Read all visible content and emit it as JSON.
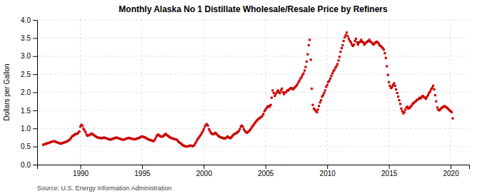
{
  "chart_data": {
    "type": "scatter",
    "title": "Monthly Alaska No 1 Distillate Wholesale/Resale Price by Refiners",
    "ylabel": "Dollars per Gallon",
    "source": "Source: U.S. Energy Information Administration",
    "color": "#cc0000",
    "marker": "square",
    "grid": true,
    "xlim": [
      1986.5,
      2021.5
    ],
    "xticks": [
      1990,
      1995,
      2000,
      2005,
      2010,
      2015,
      2020
    ],
    "ylim": [
      0.0,
      4.0
    ],
    "yticks": [
      {
        "value": 0.0,
        "label": "0.0"
      },
      0.5,
      {
        "value": 1.0,
        "label": "1.0"
      },
      1.5,
      {
        "value": 2.0,
        "label": "2.0"
      },
      2.5,
      {
        "value": 3.0,
        "label": "3.0"
      },
      3.5,
      {
        "value": 4.0,
        "label": "4.0"
      }
    ],
    "x": [
      1987.0,
      1987.08,
      1987.17,
      1987.25,
      1987.33,
      1987.42,
      1987.5,
      1987.58,
      1987.67,
      1987.75,
      1987.83,
      1987.92,
      1988.0,
      1988.08,
      1988.17,
      1988.25,
      1988.33,
      1988.42,
      1988.5,
      1988.58,
      1988.67,
      1988.75,
      1988.83,
      1988.92,
      1989.0,
      1989.08,
      1989.17,
      1989.25,
      1989.33,
      1989.42,
      1989.5,
      1989.58,
      1989.67,
      1989.75,
      1989.83,
      1989.92,
      1990.0,
      1990.08,
      1990.17,
      1990.25,
      1990.33,
      1990.42,
      1990.5,
      1990.58,
      1990.67,
      1990.75,
      1990.83,
      1990.92,
      1991.0,
      1991.08,
      1991.17,
      1991.25,
      1991.33,
      1991.42,
      1991.5,
      1991.58,
      1991.67,
      1991.75,
      1991.83,
      1991.92,
      1992.0,
      1992.08,
      1992.17,
      1992.25,
      1992.33,
      1992.42,
      1992.5,
      1992.58,
      1992.67,
      1992.75,
      1992.83,
      1992.92,
      1993.0,
      1993.08,
      1993.17,
      1993.25,
      1993.33,
      1993.42,
      1993.5,
      1993.58,
      1993.67,
      1993.75,
      1993.83,
      1993.92,
      1994.0,
      1994.08,
      1994.17,
      1994.25,
      1994.33,
      1994.42,
      1994.5,
      1994.58,
      1994.67,
      1994.75,
      1994.83,
      1994.92,
      1995.0,
      1995.08,
      1995.17,
      1995.25,
      1995.33,
      1995.42,
      1995.5,
      1995.58,
      1995.67,
      1995.75,
      1995.83,
      1995.92,
      1996.0,
      1996.08,
      1996.17,
      1996.25,
      1996.33,
      1996.42,
      1996.5,
      1996.58,
      1996.67,
      1996.75,
      1996.83,
      1996.92,
      1997.0,
      1997.08,
      1997.17,
      1997.25,
      1997.33,
      1997.42,
      1997.5,
      1997.58,
      1997.67,
      1997.75,
      1997.83,
      1997.92,
      1998.0,
      1998.08,
      1998.17,
      1998.25,
      1998.33,
      1998.42,
      1998.5,
      1998.58,
      1998.67,
      1998.75,
      1998.83,
      1998.92,
      1999.0,
      1999.08,
      1999.17,
      1999.25,
      1999.33,
      1999.42,
      1999.5,
      1999.58,
      1999.67,
      1999.75,
      1999.83,
      1999.92,
      2000.0,
      2000.08,
      2000.17,
      2000.25,
      2000.33,
      2000.42,
      2000.5,
      2000.58,
      2000.67,
      2000.75,
      2000.83,
      2000.92,
      2001.0,
      2001.08,
      2001.17,
      2001.25,
      2001.33,
      2001.42,
      2001.5,
      2001.58,
      2001.67,
      2001.75,
      2001.83,
      2001.92,
      2002.0,
      2002.08,
      2002.17,
      2002.25,
      2002.33,
      2002.42,
      2002.5,
      2002.58,
      2002.67,
      2002.75,
      2002.83,
      2002.92,
      2003.0,
      2003.08,
      2003.17,
      2003.25,
      2003.33,
      2003.42,
      2003.5,
      2003.58,
      2003.67,
      2003.75,
      2003.83,
      2003.92,
      2004.0,
      2004.08,
      2004.17,
      2004.25,
      2004.33,
      2004.42,
      2004.5,
      2004.58,
      2004.67,
      2004.75,
      2004.83,
      2004.92,
      2005.0,
      2005.08,
      2005.17,
      2005.25,
      2005.33,
      2005.42,
      2005.5,
      2005.58,
      2005.67,
      2005.75,
      2005.83,
      2005.92,
      2006.0,
      2006.08,
      2006.17,
      2006.25,
      2006.33,
      2006.42,
      2006.5,
      2006.58,
      2006.67,
      2006.75,
      2006.83,
      2006.92,
      2007.0,
      2007.08,
      2007.17,
      2007.25,
      2007.33,
      2007.42,
      2007.5,
      2007.58,
      2007.67,
      2007.75,
      2007.83,
      2007.92,
      2008.0,
      2008.08,
      2008.17,
      2008.25,
      2008.33,
      2008.42,
      2008.5,
      2008.58,
      2008.67,
      2008.75,
      2008.83,
      2008.92,
      2009.0,
      2009.08,
      2009.17,
      2009.25,
      2009.33,
      2009.42,
      2009.5,
      2009.58,
      2009.67,
      2009.75,
      2009.83,
      2009.92,
      2010.0,
      2010.08,
      2010.17,
      2010.25,
      2010.33,
      2010.42,
      2010.5,
      2010.58,
      2010.67,
      2010.75,
      2010.83,
      2010.92,
      2011.0,
      2011.08,
      2011.17,
      2011.25,
      2011.33,
      2011.42,
      2011.5,
      2011.58,
      2011.67,
      2011.75,
      2011.83,
      2011.92,
      2012.0,
      2012.08,
      2012.17,
      2012.25,
      2012.33,
      2012.42,
      2012.5,
      2012.58,
      2012.67,
      2012.75,
      2012.83,
      2012.92,
      2013.0,
      2013.08,
      2013.17,
      2013.25,
      2013.33,
      2013.42,
      2013.5,
      2013.58,
      2013.67,
      2013.75,
      2013.83,
      2013.92,
      2014.0,
      2014.08,
      2014.17,
      2014.25,
      2014.33,
      2014.42,
      2014.5,
      2014.58,
      2014.67,
      2014.75,
      2014.83,
      2014.92,
      2015.0,
      2015.08,
      2015.17,
      2015.25,
      2015.33,
      2015.42,
      2015.5,
      2015.58,
      2015.67,
      2015.75,
      2015.83,
      2015.92,
      2016.0,
      2016.08,
      2016.17,
      2016.25,
      2016.33,
      2016.42,
      2016.5,
      2016.58,
      2016.67,
      2016.75,
      2016.83,
      2016.92,
      2017.0,
      2017.08,
      2017.17,
      2017.25,
      2017.33,
      2017.42,
      2017.5,
      2017.58,
      2017.67,
      2017.75,
      2017.83,
      2017.92,
      2018.0,
      2018.08,
      2018.17,
      2018.25,
      2018.33,
      2018.42,
      2018.5,
      2018.58,
      2018.67,
      2018.75,
      2018.83,
      2018.92,
      2019.0,
      2019.08,
      2019.17,
      2019.25,
      2019.33,
      2019.42,
      2019.5,
      2019.58,
      2019.67,
      2019.75,
      2019.83,
      2019.92,
      2020.0,
      2020.08,
      2020.17
    ],
    "values": [
      0.55,
      0.56,
      0.57,
      0.58,
      0.59,
      0.6,
      0.61,
      0.62,
      0.63,
      0.64,
      0.64,
      0.65,
      0.63,
      0.62,
      0.61,
      0.6,
      0.59,
      0.58,
      0.59,
      0.6,
      0.61,
      0.62,
      0.63,
      0.64,
      0.66,
      0.68,
      0.7,
      0.74,
      0.78,
      0.8,
      0.82,
      0.84,
      0.85,
      0.86,
      0.88,
      0.92,
      1.05,
      1.1,
      1.08,
      1.0,
      0.95,
      0.9,
      0.83,
      0.8,
      0.81,
      0.82,
      0.84,
      0.86,
      0.84,
      0.82,
      0.8,
      0.78,
      0.76,
      0.75,
      0.74,
      0.74,
      0.73,
      0.73,
      0.74,
      0.75,
      0.74,
      0.73,
      0.72,
      0.71,
      0.7,
      0.69,
      0.7,
      0.71,
      0.72,
      0.73,
      0.74,
      0.75,
      0.74,
      0.73,
      0.72,
      0.71,
      0.7,
      0.69,
      0.69,
      0.7,
      0.71,
      0.72,
      0.73,
      0.74,
      0.73,
      0.72,
      0.72,
      0.71,
      0.7,
      0.7,
      0.71,
      0.72,
      0.73,
      0.74,
      0.75,
      0.77,
      0.78,
      0.77,
      0.76,
      0.75,
      0.73,
      0.72,
      0.7,
      0.69,
      0.68,
      0.67,
      0.66,
      0.65,
      0.67,
      0.72,
      0.78,
      0.82,
      0.83,
      0.8,
      0.78,
      0.77,
      0.78,
      0.8,
      0.83,
      0.85,
      0.82,
      0.8,
      0.78,
      0.76,
      0.74,
      0.73,
      0.72,
      0.71,
      0.7,
      0.7,
      0.68,
      0.65,
      0.62,
      0.6,
      0.58,
      0.55,
      0.53,
      0.52,
      0.51,
      0.5,
      0.5,
      0.51,
      0.52,
      0.53,
      0.52,
      0.51,
      0.52,
      0.55,
      0.6,
      0.65,
      0.7,
      0.74,
      0.78,
      0.82,
      0.87,
      0.92,
      0.98,
      1.05,
      1.1,
      1.12,
      1.08,
      0.98,
      0.93,
      0.88,
      0.85,
      0.84,
      0.85,
      0.88,
      0.86,
      0.83,
      0.8,
      0.78,
      0.76,
      0.75,
      0.74,
      0.73,
      0.72,
      0.73,
      0.75,
      0.78,
      0.76,
      0.74,
      0.73,
      0.76,
      0.8,
      0.83,
      0.85,
      0.86,
      0.88,
      0.9,
      0.93,
      0.98,
      1.05,
      1.08,
      1.05,
      0.98,
      0.93,
      0.9,
      0.88,
      0.9,
      0.93,
      0.96,
      1.0,
      1.05,
      1.08,
      1.12,
      1.16,
      1.2,
      1.23,
      1.26,
      1.28,
      1.3,
      1.32,
      1.35,
      1.4,
      1.48,
      1.52,
      1.56,
      1.6,
      1.62,
      1.6,
      1.65,
      1.85,
      2.05,
      1.98,
      1.9,
      1.95,
      2.0,
      2.05,
      2.0,
      1.98,
      2.05,
      2.1,
      2.0,
      1.95,
      2.0,
      2.0,
      2.05,
      2.05,
      2.08,
      2.1,
      2.12,
      2.1,
      2.08,
      2.12,
      2.15,
      2.18,
      2.22,
      2.28,
      2.32,
      2.38,
      2.42,
      2.48,
      2.52,
      2.6,
      2.7,
      2.85,
      3.05,
      3.3,
      3.45,
      2.9,
      2.1,
      1.65,
      1.55,
      1.52,
      1.48,
      1.45,
      1.52,
      1.62,
      1.72,
      1.78,
      1.88,
      1.92,
      1.98,
      2.05,
      2.15,
      2.2,
      2.28,
      2.32,
      2.38,
      2.45,
      2.52,
      2.58,
      2.62,
      2.68,
      2.72,
      2.78,
      2.88,
      2.98,
      3.12,
      3.22,
      3.3,
      3.42,
      3.52,
      3.58,
      3.65,
      3.55,
      3.48,
      3.42,
      3.38,
      3.32,
      3.28,
      3.32,
      3.42,
      3.48,
      3.38,
      3.32,
      3.38,
      3.4,
      3.45,
      3.4,
      3.38,
      3.32,
      3.35,
      3.38,
      3.4,
      3.42,
      3.45,
      3.4,
      3.38,
      3.35,
      3.32,
      3.35,
      3.38,
      3.4,
      3.38,
      3.35,
      3.3,
      3.28,
      3.25,
      3.22,
      3.18,
      3.08,
      2.95,
      2.72,
      2.48,
      2.28,
      2.18,
      2.12,
      2.14,
      2.2,
      2.25,
      2.18,
      2.08,
      1.98,
      1.88,
      1.78,
      1.68,
      1.55,
      1.48,
      1.42,
      1.45,
      1.52,
      1.58,
      1.6,
      1.55,
      1.57,
      1.6,
      1.63,
      1.68,
      1.7,
      1.73,
      1.75,
      1.78,
      1.8,
      1.82,
      1.85,
      1.83,
      1.88,
      1.9,
      1.87,
      1.85,
      1.82,
      1.87,
      1.92,
      1.98,
      2.02,
      2.08,
      2.12,
      2.18,
      2.08,
      1.92,
      1.75,
      1.58,
      1.52,
      1.5,
      1.53,
      1.56,
      1.58,
      1.6,
      1.62,
      1.6,
      1.58,
      1.56,
      1.53,
      1.5,
      1.48,
      1.45,
      1.28
    ]
  }
}
